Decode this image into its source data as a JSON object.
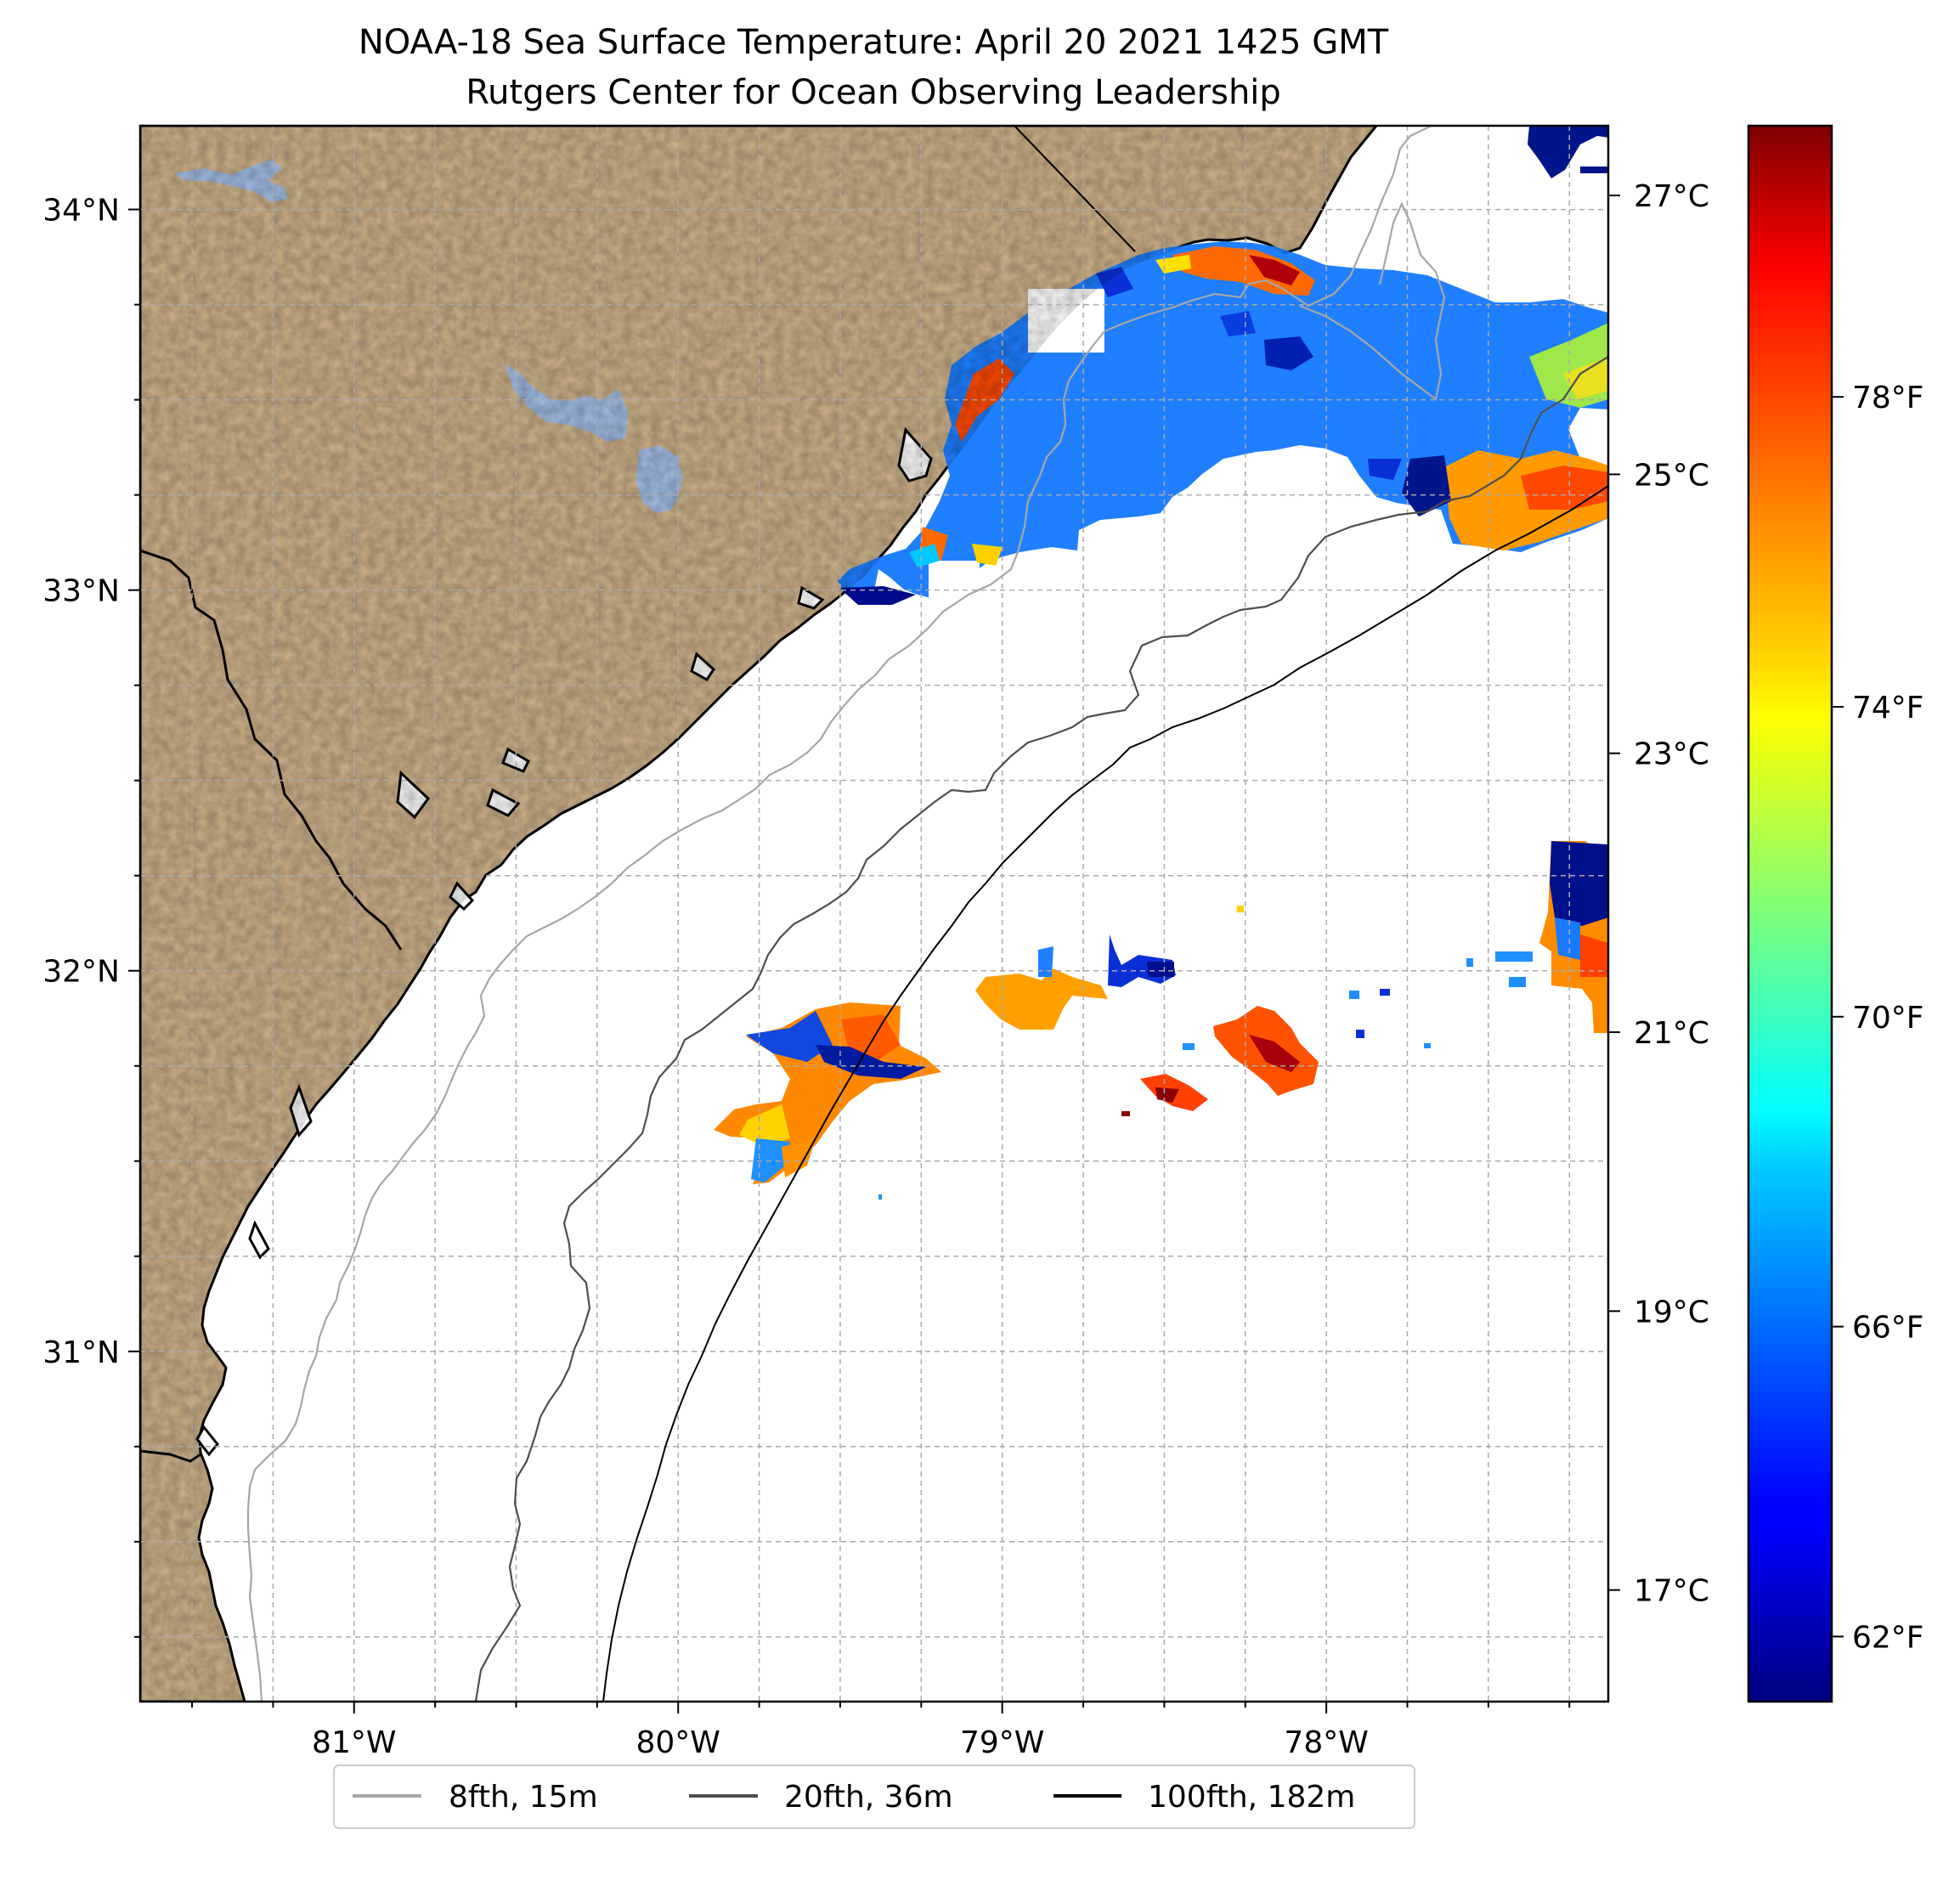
{
  "title": {
    "line1": "NOAA-18 Sea Surface Temperature: April 20 2021 1425 GMT",
    "line2": "Rutgers Center for Ocean Observing Leadership"
  },
  "map": {
    "extent": {
      "lon_min": -81.66,
      "lon_max": -77.13,
      "lat_min": 30.08,
      "lat_max": 34.22
    },
    "lon_ticks": [
      {
        "value": -81,
        "label": "81°W"
      },
      {
        "value": -80,
        "label": "80°W"
      },
      {
        "value": -79,
        "label": "79°W"
      },
      {
        "value": -78,
        "label": "78°W"
      }
    ],
    "lat_ticks": [
      {
        "value": 34,
        "label": "34°N"
      },
      {
        "value": 33,
        "label": "33°N"
      },
      {
        "value": 32,
        "label": "32°N"
      },
      {
        "value": 31,
        "label": "31°N"
      }
    ],
    "gridlines": "dashed",
    "colors": {
      "land": "#cfb38b",
      "water_bodies": "#a3bfe6",
      "coastline": "#000000",
      "ocean_no_data": "#ffffff"
    }
  },
  "colorbar": {
    "colormap": "jet",
    "range_c": [
      16.2,
      27.5
    ],
    "celsius_ticks": [
      {
        "value": 27,
        "label": "27°C"
      },
      {
        "value": 25,
        "label": "25°C"
      },
      {
        "value": 23,
        "label": "23°C"
      },
      {
        "value": 21,
        "label": "21°C"
      },
      {
        "value": 19,
        "label": "19°C"
      },
      {
        "value": 17,
        "label": "17°C"
      }
    ],
    "fahrenheit_ticks": [
      {
        "value": 78,
        "label": "78°F"
      },
      {
        "value": 74,
        "label": "74°F"
      },
      {
        "value": 70,
        "label": "70°F"
      },
      {
        "value": 66,
        "label": "66°F"
      },
      {
        "value": 62,
        "label": "62°F"
      }
    ]
  },
  "legend": {
    "placement": "bottom-center",
    "entries": [
      {
        "label": "8fth, 15m",
        "color": "#a6a6a6"
      },
      {
        "label": "20fth, 36m",
        "color": "#4f4f4f"
      },
      {
        "label": "100fth, 182m",
        "color": "#000000"
      }
    ]
  }
}
